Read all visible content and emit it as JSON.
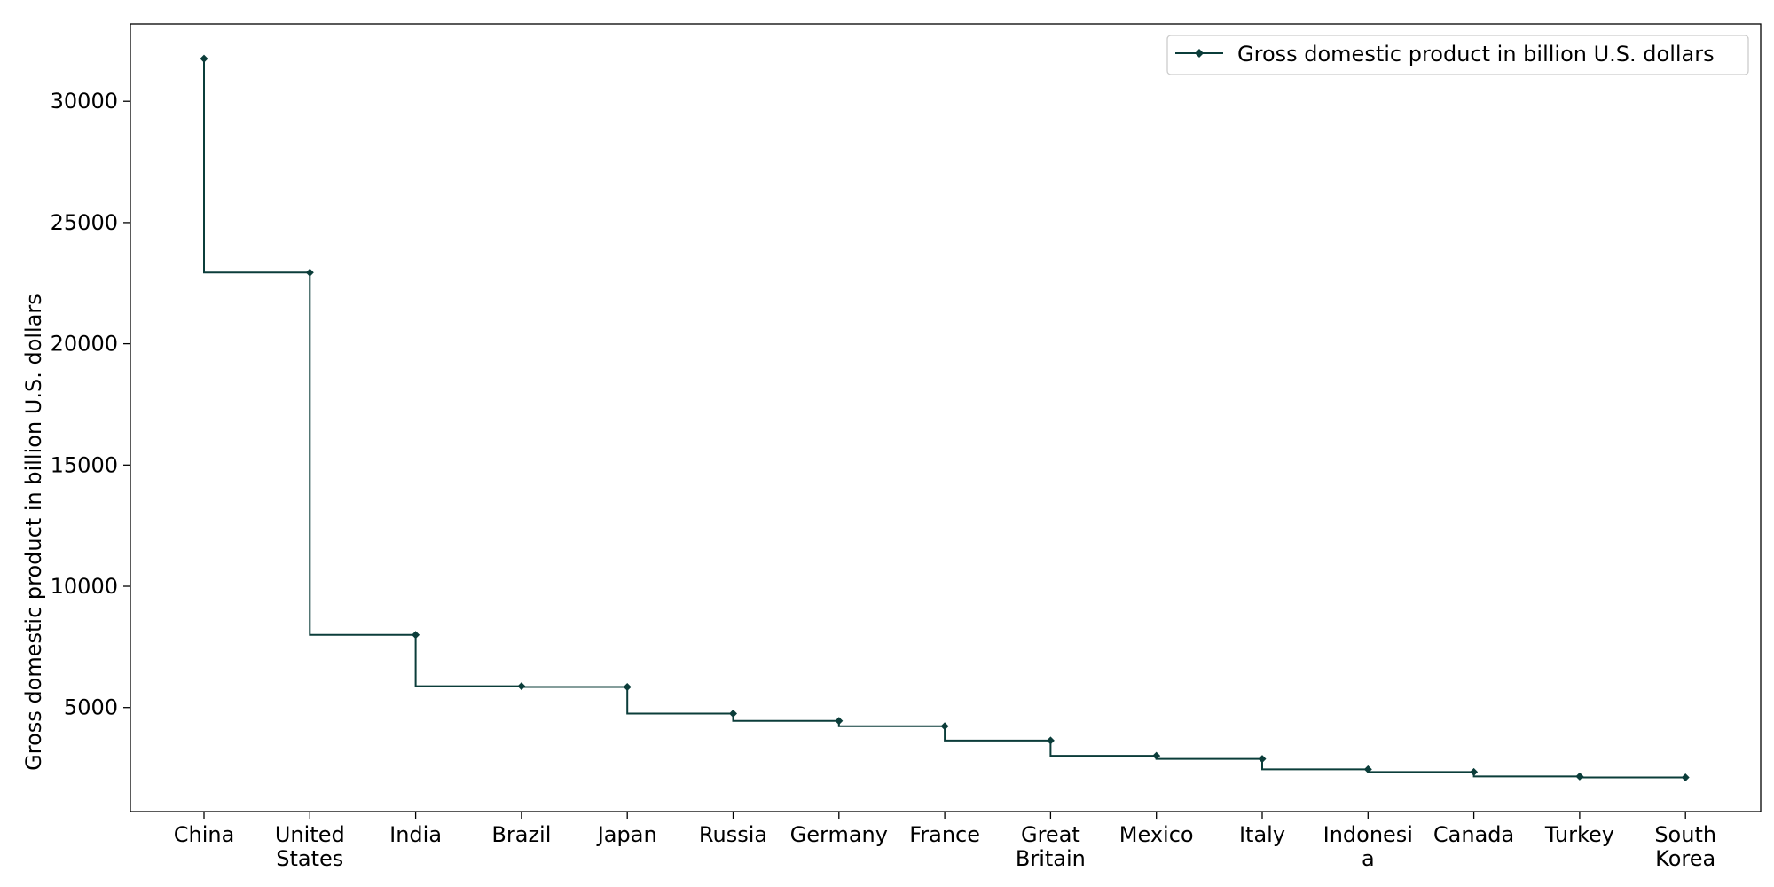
{
  "chart_data": {
    "type": "line",
    "step": "pre",
    "categories": [
      "China",
      "United States",
      "India",
      "Brazil",
      "Japan",
      "Russia",
      "Germany",
      "France",
      "Great Britain",
      "Mexico",
      "Italy",
      "Indonesia",
      "Canada",
      "Turkey",
      "South Korea"
    ],
    "category_tick_lines": [
      [
        "China"
      ],
      [
        "United",
        "States"
      ],
      [
        "India"
      ],
      [
        "Brazil"
      ],
      [
        "Japan"
      ],
      [
        "Russia"
      ],
      [
        "Germany"
      ],
      [
        "France"
      ],
      [
        "Great",
        "Britain"
      ],
      [
        "Mexico"
      ],
      [
        "Italy"
      ],
      [
        "Indonesi",
        "a"
      ],
      [
        "Canada"
      ],
      [
        "Turkey"
      ],
      [
        "South",
        "Korea"
      ]
    ],
    "series": [
      {
        "name": "Gross domestic product in billion U.S. dollars",
        "values": [
          31760,
          22940,
          8000,
          5880,
          5850,
          4750,
          4450,
          4230,
          3640,
          3010,
          2880,
          2450,
          2340,
          2160,
          2120
        ],
        "color": "#0b3d3a"
      }
    ],
    "title": "",
    "xlabel": "",
    "ylabel": "Gross domestic product in billion U.S. dollars",
    "ylim": [
      710,
      33190
    ],
    "yticks": [
      5000,
      10000,
      15000,
      20000,
      25000,
      30000
    ],
    "grid": false,
    "legend": "top-right",
    "marker": "diamond"
  }
}
